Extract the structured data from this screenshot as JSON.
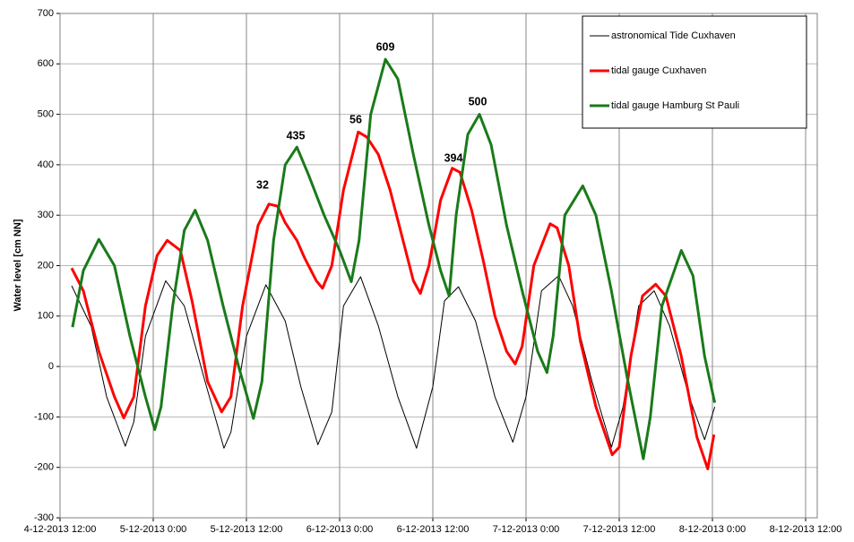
{
  "chart_data": {
    "type": "line",
    "y_label": "Water level [cm NN]",
    "xlim": [
      0,
      97.5
    ],
    "xticks": [
      {
        "value": 0,
        "label": "4-12-2013 12:00"
      },
      {
        "value": 12,
        "label": "5-12-2013 0:00"
      },
      {
        "value": 24,
        "label": "5-12-2013 12:00"
      },
      {
        "value": 36,
        "label": "6-12-2013 0:00"
      },
      {
        "value": 48,
        "label": "6-12-2013 12:00"
      },
      {
        "value": 60,
        "label": "7-12-2013 0:00"
      },
      {
        "value": 72,
        "label": "7-12-2013 12:00"
      },
      {
        "value": 84,
        "label": "8-12-2013 0:00"
      },
      {
        "value": 96,
        "label": "8-12-2013 12:00"
      }
    ],
    "ylim": [
      -300,
      700
    ],
    "yticks": [
      -300,
      -200,
      -100,
      0,
      100,
      200,
      300,
      400,
      500,
      600,
      700
    ],
    "grid": true,
    "legend": "top-right",
    "series": [
      {
        "name": "astronomical Tide Cuxhaven",
        "color": "#000000",
        "width": 1,
        "x": [
          1.5,
          4,
          6,
          8.4,
          9.5,
          11,
          13.6,
          16,
          18.5,
          21.1,
          22,
          24,
          26.5,
          29,
          31,
          33.2,
          35,
          36.5,
          38.7,
          41,
          43.5,
          45.9,
          48,
          49.5,
          51.3,
          53.5,
          56,
          58.3,
          60,
          62,
          64.2,
          66,
          68.5,
          71,
          72.5,
          74.5,
          76.5,
          78.5,
          81,
          83,
          84.3
        ],
        "values": [
          160,
          80,
          -60,
          -158,
          -110,
          60,
          170,
          120,
          -20,
          -162,
          -130,
          60,
          162,
          90,
          -40,
          -155,
          -90,
          120,
          178,
          80,
          -60,
          -162,
          -40,
          130,
          158,
          90,
          -60,
          -150,
          -60,
          150,
          180,
          120,
          -30,
          -160,
          -80,
          120,
          150,
          80,
          -60,
          -145,
          -80
        ]
      },
      {
        "name": "tidal gauge Cuxhaven",
        "color": "#ff0000",
        "width": 3,
        "x": [
          1.5,
          3,
          5,
          7,
          8.2,
          9.5,
          11,
          12.5,
          13.8,
          15.5,
          17,
          19,
          20.8,
          22,
          23.5,
          25.5,
          26.9,
          28,
          29,
          30.5,
          31.5,
          33,
          33.8,
          35,
          36.5,
          38.4,
          39.5,
          41,
          42.5,
          44,
          45.5,
          46.4,
          47.5,
          49,
          50.5,
          51.5,
          53,
          54.5,
          56,
          57.5,
          58.6,
          59.5,
          61,
          63.1,
          64,
          65.5,
          67,
          69,
          71.1,
          72,
          73.5,
          75,
          76.7,
          78,
          80,
          82,
          83.4,
          84.2
        ],
        "values": [
          195,
          150,
          30,
          -60,
          -102,
          -60,
          120,
          220,
          250,
          230,
          130,
          -30,
          -90,
          -60,
          120,
          280,
          322,
          318,
          285,
          250,
          215,
          170,
          155,
          200,
          350,
          465,
          455,
          420,
          350,
          260,
          170,
          145,
          200,
          330,
          393,
          385,
          310,
          210,
          100,
          30,
          5,
          40,
          200,
          283,
          275,
          200,
          50,
          -80,
          -175,
          -160,
          20,
          140,
          163,
          140,
          20,
          -140,
          -203,
          -135
        ]
      },
      {
        "name": "tidal gauge Hamburg St Pauli",
        "color": "#1a7a1a",
        "width": 3,
        "x": [
          1.6,
          3,
          5,
          7,
          9,
          11,
          12.2,
          13,
          14.5,
          16,
          17.4,
          19,
          21,
          23,
          24.9,
          26,
          27.5,
          29,
          30.5,
          32,
          34,
          36,
          37.5,
          38.5,
          40,
          41.9,
          43.5,
          45.5,
          47.5,
          49,
          50.1,
          51,
          52.5,
          54,
          55.5,
          57.5,
          59.5,
          61.5,
          62.7,
          63.5,
          65,
          67.3,
          69,
          71,
          73,
          75.1,
          76,
          77.5,
          80,
          81.5,
          83,
          84.3
        ],
        "values": [
          78,
          190,
          252,
          200,
          60,
          -60,
          -125,
          -80,
          120,
          270,
          310,
          250,
          120,
          0,
          -103,
          -30,
          250,
          400,
          435,
          380,
          300,
          230,
          168,
          250,
          500,
          609,
          570,
          420,
          280,
          190,
          140,
          300,
          460,
          500,
          440,
          280,
          150,
          30,
          -12,
          60,
          300,
          358,
          300,
          150,
          -20,
          -183,
          -100,
          120,
          230,
          180,
          20,
          -72
        ]
      }
    ],
    "annotations": [
      "32",
      "435",
      "56",
      "609",
      "394",
      "500"
    ]
  }
}
